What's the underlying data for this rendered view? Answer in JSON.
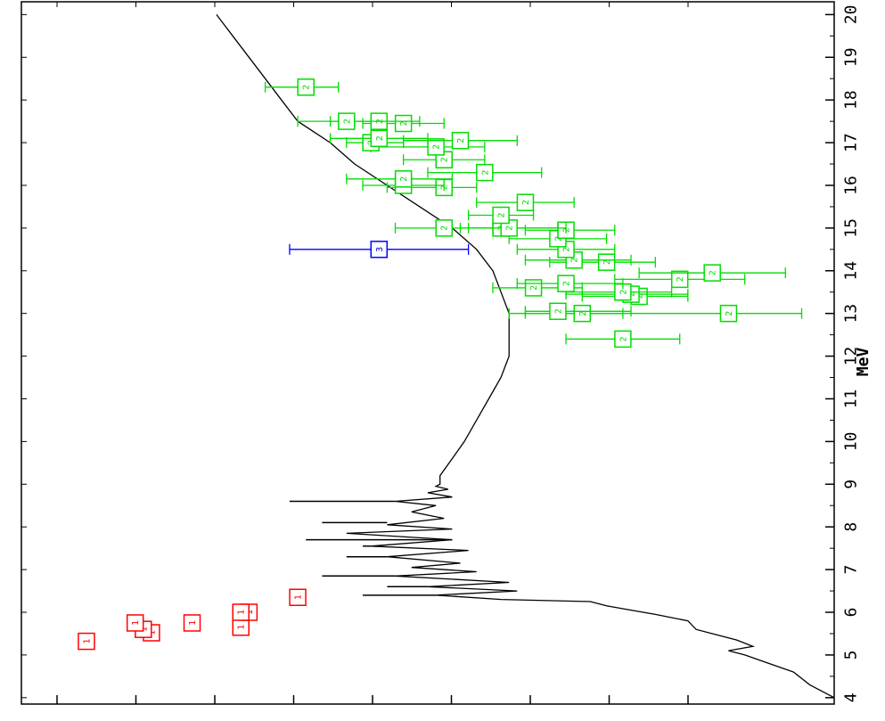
{
  "chart_data": {
    "type": "scatter",
    "orientation": "rotated-90-clockwise",
    "title": "",
    "xlabel": "MeV",
    "ylabel": "",
    "xlim": [
      3.85,
      20.3
    ],
    "ylim": [
      0,
      1
    ],
    "x_ticks": [
      "4",
      "5",
      "6",
      "7",
      "8",
      "9",
      "10",
      "11",
      "12",
      "13",
      "14",
      "15",
      "16",
      "17",
      "18",
      "19",
      "20"
    ],
    "y_tick_count": 9,
    "grid": false,
    "legend": "none",
    "colors": {
      "1": "#ff0000",
      "2": "#00dd00",
      "3": "#0000ff",
      "curve": "#000000",
      "axis": "#000000"
    },
    "curve_label": "",
    "curve": [
      [
        4.0,
        0.0
      ],
      [
        4.3,
        0.03
      ],
      [
        4.6,
        0.05
      ],
      [
        4.8,
        0.08
      ],
      [
        5.0,
        0.11
      ],
      [
        5.1,
        0.13
      ],
      [
        5.2,
        0.1
      ],
      [
        5.35,
        0.12
      ],
      [
        5.5,
        0.15
      ],
      [
        5.6,
        0.17
      ],
      [
        5.8,
        0.18
      ],
      [
        5.95,
        0.22
      ],
      [
        6.05,
        0.25
      ],
      [
        6.15,
        0.28
      ],
      [
        6.25,
        0.3
      ],
      [
        6.3,
        0.41
      ],
      [
        6.4,
        0.49
      ],
      [
        6.5,
        0.39
      ],
      [
        6.6,
        0.5
      ],
      [
        6.7,
        0.4
      ],
      [
        6.85,
        0.54
      ],
      [
        6.95,
        0.44
      ],
      [
        7.05,
        0.52
      ],
      [
        7.15,
        0.46
      ],
      [
        7.3,
        0.55
      ],
      [
        7.45,
        0.45
      ],
      [
        7.55,
        0.57
      ],
      [
        7.7,
        0.47
      ],
      [
        7.85,
        0.6
      ],
      [
        7.95,
        0.47
      ],
      [
        8.05,
        0.55
      ],
      [
        8.2,
        0.48
      ],
      [
        8.35,
        0.52
      ],
      [
        8.5,
        0.49
      ],
      [
        8.6,
        0.54
      ],
      [
        8.7,
        0.47
      ],
      [
        8.8,
        0.5
      ],
      [
        8.88,
        0.475
      ],
      [
        8.95,
        0.49
      ],
      [
        9.0,
        0.485
      ],
      [
        9.2,
        0.485
      ],
      [
        9.6,
        0.47
      ],
      [
        10.0,
        0.455
      ],
      [
        10.5,
        0.44
      ],
      [
        11.0,
        0.425
      ],
      [
        11.5,
        0.41
      ],
      [
        12.0,
        0.4
      ],
      [
        12.5,
        0.4
      ],
      [
        13.0,
        0.4
      ],
      [
        13.5,
        0.41
      ],
      [
        14.0,
        0.42
      ],
      [
        14.5,
        0.44
      ],
      [
        15.0,
        0.47
      ],
      [
        15.5,
        0.51
      ],
      [
        16.0,
        0.55
      ],
      [
        16.5,
        0.59
      ],
      [
        17.0,
        0.62
      ],
      [
        17.5,
        0.66
      ],
      [
        18.0,
        0.68
      ],
      [
        18.5,
        0.7
      ],
      [
        19.0,
        0.72
      ],
      [
        19.5,
        0.74
      ],
      [
        20.0,
        0.76
      ]
    ],
    "spikes": [
      [
        6.4,
        0.58
      ],
      [
        6.85,
        0.63
      ],
      [
        7.3,
        0.6
      ],
      [
        7.7,
        0.65
      ],
      [
        8.1,
        0.63
      ],
      [
        8.6,
        0.67
      ],
      [
        6.6,
        0.55
      ],
      [
        7.55,
        0.58
      ]
    ],
    "series": [
      {
        "name": "1",
        "points": [
          [
            5.32,
            0.92
          ],
          [
            5.52,
            0.84
          ],
          [
            5.6,
            0.85
          ],
          [
            5.75,
            0.86
          ],
          [
            5.65,
            0.73
          ],
          [
            5.75,
            0.79
          ],
          [
            6.0,
            0.72
          ],
          [
            6.0,
            0.73
          ],
          [
            6.35,
            0.66
          ]
        ]
      },
      {
        "name": "2",
        "points": [
          [
            12.4,
            0.26,
            0.19,
            0.33
          ],
          [
            13.0,
            0.13,
            0.04,
            0.4
          ],
          [
            13.0,
            0.31,
            0.26,
            0.38
          ],
          [
            13.05,
            0.34,
            0.25,
            0.38
          ],
          [
            13.4,
            0.24,
            0.18,
            0.31
          ],
          [
            13.45,
            0.25,
            0.18,
            0.33
          ],
          [
            13.5,
            0.26,
            0.2,
            0.33
          ],
          [
            13.6,
            0.37,
            0.31,
            0.42
          ],
          [
            13.7,
            0.33,
            0.26,
            0.39
          ],
          [
            13.8,
            0.19,
            0.11,
            0.27
          ],
          [
            13.95,
            0.15,
            0.06,
            0.24
          ],
          [
            14.2,
            0.28,
            0.22,
            0.35
          ],
          [
            14.25,
            0.32,
            0.25,
            0.38
          ],
          [
            14.5,
            0.33,
            0.27,
            0.39
          ],
          [
            14.75,
            0.34,
            0.28,
            0.4
          ],
          [
            14.95,
            0.33,
            0.27,
            0.38
          ],
          [
            15.0,
            0.41,
            0.34,
            0.46
          ],
          [
            15.0,
            0.4,
            0.33,
            0.45
          ],
          [
            15.0,
            0.48,
            0.42,
            0.54
          ],
          [
            15.3,
            0.41,
            0.37,
            0.45
          ],
          [
            15.6,
            0.38,
            0.32,
            0.44
          ],
          [
            15.95,
            0.48,
            0.44,
            0.55
          ],
          [
            16.0,
            0.53,
            0.48,
            0.58
          ],
          [
            16.15,
            0.53,
            0.47,
            0.6
          ],
          [
            16.3,
            0.43,
            0.36,
            0.5
          ],
          [
            16.6,
            0.48,
            0.43,
            0.53
          ],
          [
            16.9,
            0.49,
            0.43,
            0.57
          ],
          [
            17.0,
            0.57,
            0.53,
            0.6
          ],
          [
            17.05,
            0.46,
            0.39,
            0.53
          ],
          [
            17.1,
            0.56,
            0.5,
            0.62
          ],
          [
            17.45,
            0.53,
            0.48,
            0.58
          ],
          [
            17.5,
            0.56,
            0.51,
            0.62
          ],
          [
            17.5,
            0.6,
            0.55,
            0.66
          ]
        ]
      },
      {
        "name": "2",
        "points": [
          [
            18.3,
            0.65,
            0.61,
            0.7
          ]
        ]
      },
      {
        "name": "3",
        "points": [
          [
            14.5,
            0.56,
            0.45,
            0.67
          ]
        ]
      }
    ]
  }
}
